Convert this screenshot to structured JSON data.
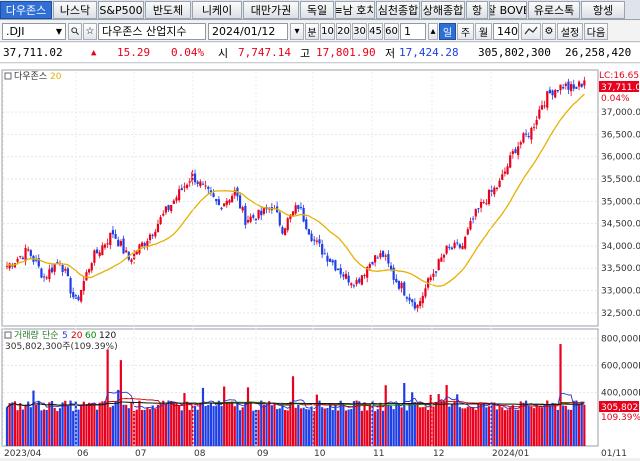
{
  "tabs": [
    "다우존스",
    "나스닥",
    "S&P500",
    "반도체",
    "니케이",
    "대만가권",
    "독일",
    "홍콩",
    "상해종합",
    "항셍"
  ],
  "tabs_visible": [
    "다우존스",
    "나스닥",
    "S&P500",
    "반도체",
    "니케이",
    "대만가권",
    "독일",
    "≡남 호치",
    "심천종합",
    "상해종합",
    "항",
    "잘 BOVE",
    "유로스톡",
    "항셍"
  ],
  "toolbar": {
    "symbol": ".DJI",
    "name": "다우존스 산업지수",
    "date": "2024/01/12",
    "period_label": "분",
    "minutes": [
      "10",
      "20",
      "30",
      "45",
      "60"
    ],
    "count": "1",
    "day": "일",
    "week": "주",
    "month": "월",
    "bars": "140",
    "settings": "설정",
    "next": "다음"
  },
  "quote": {
    "last": "37,711.02",
    "arrow": "▲",
    "change": "15.29",
    "pct": "0.04%",
    "open_label": "시",
    "open": "7,747.14",
    "high_label": "고",
    "high": "17,801.90",
    "low_label": "저",
    "low": "17,424.28",
    "volume": "305,802,300",
    "amount": "26,258,420"
  },
  "price_panel": {
    "legend_name": "다우존스",
    "legend_ma": "20",
    "lc_label": "LC:16.65",
    "last_price_box": "37,711.02",
    "last_pct": "0.04%",
    "ticks": [
      "37,000.00",
      "36,500.00",
      "36,000.00",
      "35,500.00",
      "35,000.00",
      "34,500.00",
      "34,000.00",
      "33,500.00",
      "33,000.00",
      "32,500.00"
    ]
  },
  "volume_panel": {
    "legend": "거래량 단순 5 20 60 120",
    "legend_parts": [
      "거래량",
      "단순",
      "5",
      "20",
      "60",
      "120"
    ],
    "value_line": "305,802,300주(109.39%)",
    "vol_box": "305,802K",
    "vol_pct": "109.39%",
    "ticks": [
      "800,000K",
      "600,000K",
      "400,000K"
    ]
  },
  "x_axis": [
    "2023/04",
    "05",
    "06",
    "07",
    "08",
    "09",
    "10",
    "11",
    "12",
    "2024/01"
  ],
  "x_axis_right": "01/11",
  "colors": {
    "up": "#e8001c",
    "down": "#1e3ee6",
    "ma20": "#e5b100",
    "accent": "#2f6fd6"
  },
  "chart_data": {
    "type": "candlestick",
    "ylim": [
      32250,
      37900
    ],
    "last": 37711.02,
    "ma20_last": 37500,
    "volume_ylim": [
      0,
      850000
    ],
    "volume_units": "K"
  }
}
